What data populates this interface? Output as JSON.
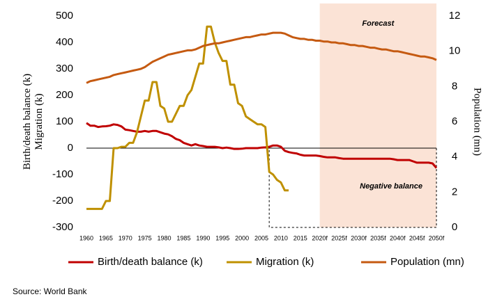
{
  "chart_data": {
    "type": "line",
    "x": [
      1960,
      1961,
      1962,
      1963,
      1964,
      1965,
      1966,
      1967,
      1968,
      1969,
      1970,
      1971,
      1972,
      1973,
      1974,
      1975,
      1976,
      1977,
      1978,
      1979,
      1980,
      1981,
      1982,
      1983,
      1984,
      1985,
      1986,
      1987,
      1988,
      1989,
      1990,
      1991,
      1992,
      1993,
      1994,
      1995,
      1996,
      1997,
      1998,
      1999,
      2000,
      2001,
      2002,
      2003,
      2004,
      2005,
      2006,
      2007,
      2008,
      2009,
      2010,
      2011,
      2012,
      2013,
      2014,
      2015,
      2016,
      2017,
      2018,
      2019,
      2020,
      2021,
      2022,
      2023,
      2024,
      2025,
      2026,
      2027,
      2028,
      2029,
      2030,
      2031,
      2032,
      2033,
      2034,
      2035,
      2036,
      2037,
      2038,
      2039,
      2040,
      2041,
      2042,
      2043,
      2044,
      2045,
      2046,
      2047,
      2048,
      2049,
      2050
    ],
    "series": [
      {
        "name": "Birth/death balance (k)",
        "color": "#c00000",
        "axis": "y",
        "values": [
          95,
          85,
          85,
          80,
          82,
          83,
          85,
          90,
          88,
          82,
          70,
          68,
          65,
          62,
          62,
          65,
          62,
          65,
          65,
          60,
          55,
          52,
          45,
          35,
          30,
          20,
          15,
          10,
          15,
          10,
          8,
          5,
          5,
          5,
          3,
          0,
          2,
          0,
          -3,
          -3,
          -2,
          0,
          0,
          0,
          0,
          2,
          3,
          5,
          10,
          10,
          5,
          -10,
          -15,
          -18,
          -20,
          -25,
          -28,
          -28,
          -28,
          -28,
          -30,
          -33,
          -35,
          -35,
          -35,
          -38,
          -40,
          -40,
          -40,
          -40,
          -40,
          -40,
          -40,
          -40,
          -40,
          -40,
          -40,
          -40,
          -40,
          -42,
          -45,
          -45,
          -45,
          -45,
          -50,
          -55,
          -55,
          -55,
          -55,
          -58,
          -75
        ]
      },
      {
        "name": "Migration (k)",
        "color": "#bf9000",
        "axis": "y",
        "values": [
          -230,
          -230,
          -230,
          -230,
          -230,
          -200,
          -200,
          0,
          0,
          5,
          5,
          20,
          20,
          60,
          120,
          180,
          180,
          250,
          250,
          160,
          150,
          100,
          100,
          130,
          160,
          160,
          200,
          220,
          270,
          320,
          320,
          460,
          460,
          400,
          360,
          330,
          330,
          240,
          240,
          170,
          160,
          120,
          110,
          100,
          90,
          90,
          80,
          -90,
          -100,
          -120,
          -130,
          -160,
          -160,
          null,
          null,
          null,
          null,
          null,
          null,
          null,
          null,
          null,
          null,
          null,
          null,
          null,
          null,
          null,
          null,
          null,
          null,
          null,
          null,
          null,
          null,
          null,
          null,
          null,
          null,
          null,
          null,
          null,
          null,
          null,
          null,
          null,
          null,
          null,
          null,
          null,
          null
        ]
      },
      {
        "name": "Population (mn)",
        "color": "#c55a11",
        "axis": "y2",
        "values": [
          8.2,
          8.3,
          8.35,
          8.4,
          8.45,
          8.5,
          8.55,
          8.65,
          8.7,
          8.75,
          8.8,
          8.85,
          8.9,
          8.95,
          9.0,
          9.1,
          9.25,
          9.4,
          9.5,
          9.6,
          9.7,
          9.8,
          9.85,
          9.9,
          9.95,
          10.0,
          10.05,
          10.05,
          10.1,
          10.2,
          10.3,
          10.35,
          10.4,
          10.45,
          10.45,
          10.5,
          10.55,
          10.6,
          10.65,
          10.7,
          10.75,
          10.8,
          10.8,
          10.85,
          10.9,
          10.95,
          10.95,
          11.0,
          11.05,
          11.05,
          11.05,
          11.0,
          10.9,
          10.8,
          10.75,
          10.7,
          10.7,
          10.65,
          10.65,
          10.6,
          10.6,
          10.55,
          10.55,
          10.5,
          10.5,
          10.45,
          10.45,
          10.4,
          10.35,
          10.35,
          10.3,
          10.3,
          10.25,
          10.2,
          10.2,
          10.15,
          10.1,
          10.1,
          10.05,
          10.0,
          10.0,
          9.95,
          9.9,
          9.85,
          9.8,
          9.75,
          9.7,
          9.7,
          9.65,
          9.6,
          9.5
        ]
      }
    ],
    "xlim": [
      1960,
      2050
    ],
    "xticks": [
      1960,
      1965,
      1970,
      1975,
      1980,
      1985,
      1990,
      1995,
      2000,
      2005,
      2010,
      2015,
      {
        "value": 2020,
        "label": "2020f"
      },
      {
        "value": 2025,
        "label": "2025f"
      },
      {
        "value": 2030,
        "label": "2030f"
      },
      {
        "value": 2035,
        "label": "2035f"
      },
      {
        "value": 2040,
        "label": "2040f"
      },
      {
        "value": 2045,
        "label": "2045f"
      },
      {
        "value": 2050,
        "label": "2050f"
      }
    ],
    "ylim": [
      -300,
      500
    ],
    "yticks": [
      -300,
      -200,
      -100,
      0,
      100,
      200,
      300,
      400,
      500
    ],
    "y2lim": [
      0,
      12
    ],
    "y2ticks": [
      0,
      2,
      4,
      6,
      8,
      10,
      12
    ],
    "ylabel": [
      "Birth/death balance (k)",
      "Migration (k)"
    ],
    "y2label": "Population (mn)",
    "shaded_region": {
      "x": [
        2020,
        2050
      ],
      "color": "#fbe3d6",
      "label": "Forecast"
    },
    "negative_box": {
      "x": [
        2007,
        2050
      ],
      "y": [
        -300,
        0
      ],
      "label": "Negative balance"
    },
    "legend": "bottom",
    "source": "Source: World Bank"
  }
}
